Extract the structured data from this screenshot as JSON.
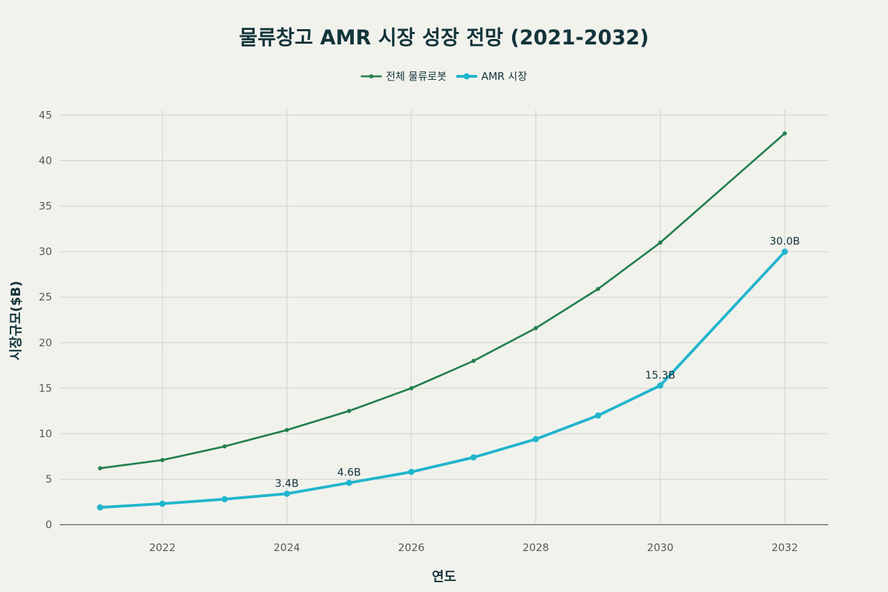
{
  "chart_data": {
    "type": "line",
    "title": "물류창고 AMR 시장 성장 전망 (2021-2032)",
    "xlabel": "연도",
    "ylabel": "시장규모($B)",
    "x": [
      2021,
      2022,
      2023,
      2024,
      2025,
      2026,
      2027,
      2028,
      2029,
      2030,
      2032
    ],
    "xlim": [
      2020.35,
      2032.7
    ],
    "ylim": [
      0,
      45
    ],
    "xticks": [
      2022,
      2024,
      2026,
      2028,
      2030,
      2032
    ],
    "yticks": [
      0,
      5,
      10,
      15,
      20,
      25,
      30,
      35,
      40,
      45
    ],
    "grid": true,
    "legend_position": "top-center",
    "series": [
      {
        "name": "전체 물류로봇",
        "color": "#24804f",
        "values": [
          6.2,
          7.1,
          8.6,
          10.4,
          12.5,
          15.0,
          18.0,
          21.6,
          25.9,
          31.0,
          43.0
        ],
        "labels": []
      },
      {
        "name": "AMR 시장",
        "color": "#21b5cc",
        "values": [
          1.9,
          2.3,
          2.8,
          3.4,
          4.6,
          5.8,
          7.4,
          9.4,
          12.0,
          15.3,
          30.0
        ],
        "labels": [
          {
            "x": 2024,
            "value": 3.4,
            "text": "3.4B"
          },
          {
            "x": 2025,
            "value": 4.6,
            "text": "4.6B"
          },
          {
            "x": 2030,
            "value": 15.3,
            "text": "15.3B"
          },
          {
            "x": 2032,
            "value": 30.0,
            "text": "30.0B"
          }
        ]
      }
    ]
  }
}
